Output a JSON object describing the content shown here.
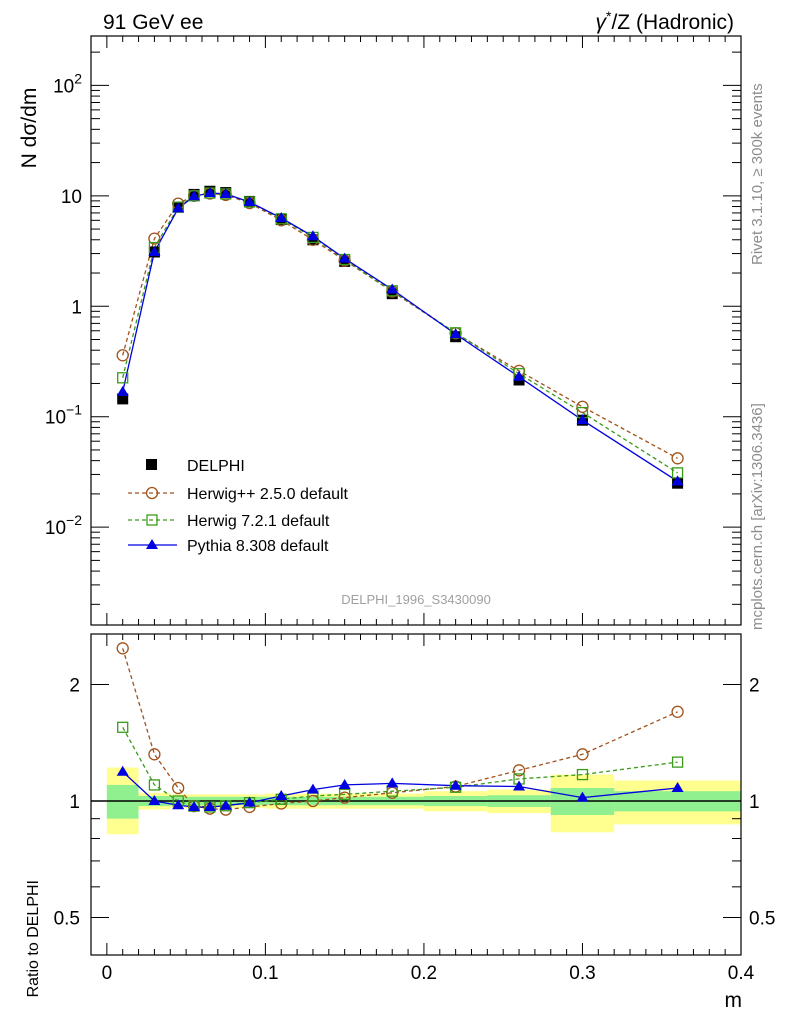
{
  "header": {
    "left": "91 GeV ee",
    "right_prefix": "γ",
    "right_sup": "*",
    "right_suffix": "/Z (Hadronic)"
  },
  "side_labels": {
    "rivet": "Rivet 3.1.10, ≥ 300k events",
    "mcplots": "mcplots.cern.ch [arXiv:1306.3436]"
  },
  "watermark": "DELPHI_1996_S3430090",
  "colors": {
    "data": "#000000",
    "herwigpp": "#a0521a",
    "herwig7": "#3a9a1a",
    "pythia": "#0000e0",
    "band_inner": "#90f090",
    "band_outer": "#ffff90"
  },
  "chart_data": [
    {
      "type": "scatter",
      "scale": "log",
      "ylabel": "N dσ/dm",
      "xlim": [
        -0.01,
        0.4
      ],
      "ylim": [
        0.0013,
        280
      ],
      "yticks_major": [
        {
          "value": 0.01,
          "base": "10",
          "exp": "−2"
        },
        {
          "value": 0.1,
          "base": "10",
          "exp": "−1"
        },
        {
          "value": 1,
          "label": "1"
        },
        {
          "value": 10,
          "label": "10"
        },
        {
          "value": 100,
          "base": "10",
          "exp": "2"
        }
      ],
      "legend_position": "center-left",
      "series": [
        {
          "key": "data",
          "name": "DELPHI",
          "x": [
            0.01,
            0.03,
            0.045,
            0.055,
            0.065,
            0.075,
            0.09,
            0.11,
            0.13,
            0.15,
            0.18,
            0.22,
            0.26,
            0.3,
            0.36
          ],
          "y": [
            0.145,
            3.1,
            7.9,
            10.3,
            11.0,
            10.7,
            8.9,
            6.1,
            4.0,
            2.55,
            1.3,
            0.53,
            0.215,
            0.093,
            0.025
          ]
        },
        {
          "key": "herwigpp",
          "name": "Herwig++ 2.5.0 default",
          "x": [
            0.01,
            0.03,
            0.045,
            0.055,
            0.065,
            0.075,
            0.09,
            0.11,
            0.13,
            0.15,
            0.18,
            0.22,
            0.26,
            0.3,
            0.36
          ],
          "y": [
            0.36,
            4.1,
            8.5,
            10.0,
            10.5,
            10.2,
            8.6,
            6.0,
            4.0,
            2.6,
            1.36,
            0.57,
            0.26,
            0.123,
            0.042
          ]
        },
        {
          "key": "herwig7",
          "name": "Herwig 7.2.1 default",
          "x": [
            0.01,
            0.03,
            0.045,
            0.055,
            0.065,
            0.075,
            0.09,
            0.11,
            0.13,
            0.15,
            0.18,
            0.22,
            0.26,
            0.3,
            0.36
          ],
          "y": [
            0.225,
            3.4,
            7.9,
            10.0,
            10.6,
            10.4,
            8.8,
            6.2,
            4.2,
            2.65,
            1.38,
            0.575,
            0.245,
            0.109,
            0.031
          ]
        },
        {
          "key": "pythia",
          "name": "Pythia 8.308 default",
          "x": [
            0.01,
            0.03,
            0.045,
            0.055,
            0.065,
            0.075,
            0.09,
            0.11,
            0.13,
            0.15,
            0.18,
            0.22,
            0.26,
            0.3,
            0.36
          ],
          "y": [
            0.168,
            3.1,
            7.7,
            9.9,
            10.6,
            10.4,
            8.8,
            6.3,
            4.3,
            2.7,
            1.42,
            0.56,
            0.23,
            0.093,
            0.026
          ]
        }
      ]
    },
    {
      "type": "line",
      "scale": "log",
      "ylabel": "Ratio to DELPHI",
      "xlabel": "m",
      "xlim": [
        -0.01,
        0.4
      ],
      "ylim": [
        0.4,
        2.7
      ],
      "xticks": [
        {
          "value": 0,
          "label": "0"
        },
        {
          "value": 0.1,
          "label": "0.1"
        },
        {
          "value": 0.2,
          "label": "0.2"
        },
        {
          "value": 0.3,
          "label": "0.3"
        },
        {
          "value": 0.4,
          "label": "0.4"
        }
      ],
      "yticks": [
        {
          "value": 0.5,
          "label": "0.5"
        },
        {
          "value": 1,
          "label": "1"
        },
        {
          "value": 2,
          "label": "2"
        }
      ],
      "bands": [
        {
          "x0": 0.0,
          "x1": 0.02,
          "inner": [
            0.9,
            1.1
          ],
          "outer": [
            0.82,
            1.22
          ]
        },
        {
          "x0": 0.02,
          "x1": 0.04,
          "inner": [
            0.97,
            1.03
          ],
          "outer": [
            0.95,
            1.05
          ]
        },
        {
          "x0": 0.04,
          "x1": 0.1,
          "inner": [
            0.975,
            1.025
          ],
          "outer": [
            0.96,
            1.04
          ]
        },
        {
          "x0": 0.1,
          "x1": 0.2,
          "inner": [
            0.975,
            1.025
          ],
          "outer": [
            0.955,
            1.045
          ]
        },
        {
          "x0": 0.2,
          "x1": 0.24,
          "inner": [
            0.97,
            1.03
          ],
          "outer": [
            0.94,
            1.06
          ]
        },
        {
          "x0": 0.24,
          "x1": 0.28,
          "inner": [
            0.965,
            1.035
          ],
          "outer": [
            0.93,
            1.07
          ]
        },
        {
          "x0": 0.28,
          "x1": 0.32,
          "inner": [
            0.92,
            1.08
          ],
          "outer": [
            0.83,
            1.17
          ]
        },
        {
          "x0": 0.32,
          "x1": 0.4,
          "inner": [
            0.94,
            1.06
          ],
          "outer": [
            0.87,
            1.13
          ]
        }
      ],
      "series": [
        {
          "key": "herwigpp",
          "name": "Herwig++ 2.5.0 default",
          "x": [
            0.01,
            0.03,
            0.045,
            0.055,
            0.065,
            0.075,
            0.09,
            0.11,
            0.13,
            0.15,
            0.18,
            0.22,
            0.26,
            0.3,
            0.36
          ],
          "y": [
            2.48,
            1.32,
            1.08,
            0.97,
            0.955,
            0.95,
            0.965,
            0.985,
            1.0,
            1.02,
            1.05,
            1.09,
            1.2,
            1.32,
            1.7
          ]
        },
        {
          "key": "herwig7",
          "name": "Herwig 7.2.1 default",
          "x": [
            0.01,
            0.03,
            0.045,
            0.055,
            0.065,
            0.075,
            0.09,
            0.11,
            0.13,
            0.15,
            0.18,
            0.22,
            0.26,
            0.3,
            0.36
          ],
          "y": [
            1.55,
            1.1,
            1.0,
            0.97,
            0.965,
            0.972,
            0.99,
            1.01,
            1.03,
            1.04,
            1.06,
            1.085,
            1.14,
            1.17,
            1.26
          ]
        },
        {
          "key": "pythia",
          "name": "Pythia 8.308 default",
          "x": [
            0.01,
            0.03,
            0.045,
            0.055,
            0.065,
            0.075,
            0.09,
            0.11,
            0.13,
            0.15,
            0.18,
            0.22,
            0.26,
            0.3,
            0.36
          ],
          "y": [
            1.19,
            1.0,
            0.975,
            0.965,
            0.965,
            0.972,
            0.99,
            1.03,
            1.07,
            1.1,
            1.11,
            1.095,
            1.09,
            1.02,
            1.08
          ]
        }
      ]
    }
  ]
}
